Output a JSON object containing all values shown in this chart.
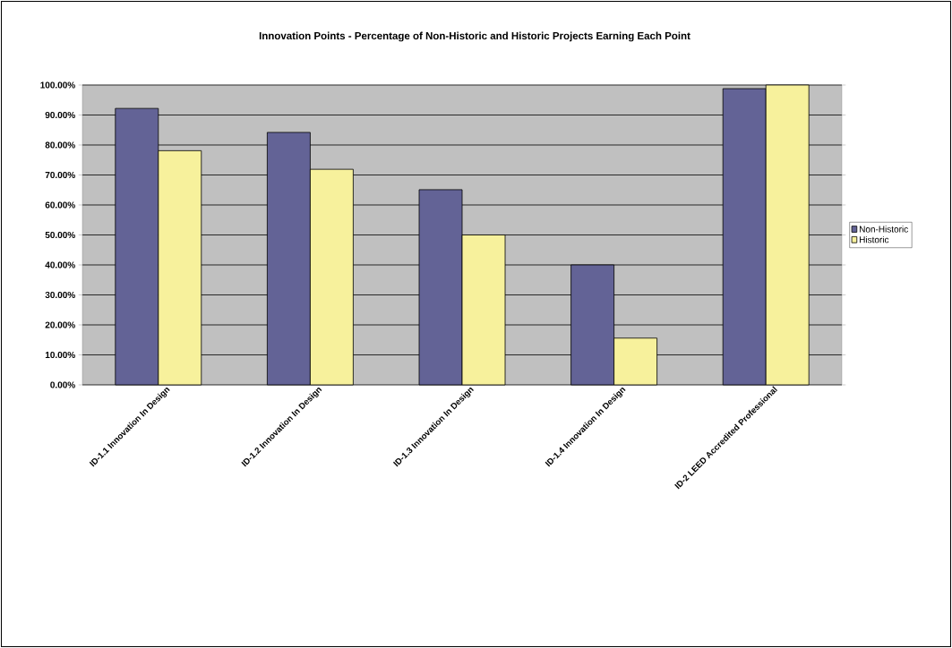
{
  "chart_data": {
    "type": "bar",
    "title": "Innovation Points - Percentage of Non-Historic and Historic Projects Earning Each Point",
    "categories": [
      "ID-1.1 Innovation In Design",
      "ID-1.2 Innovation In Design",
      "ID-1.3 Innovation In Design",
      "ID-1.4 Innovation In Design",
      "ID-2 LEED Accredited Professional"
    ],
    "series": [
      {
        "name": "Non-Historic",
        "color": "#636396",
        "values": [
          92.2,
          84.2,
          65.1,
          40.0,
          98.8
        ]
      },
      {
        "name": "Historic",
        "color": "#f7f19c",
        "values": [
          78.1,
          71.9,
          50.0,
          15.6,
          100.0
        ]
      }
    ],
    "ylim": [
      0,
      100
    ],
    "yticks": [
      {
        "value": 0,
        "label": "0.00%"
      },
      {
        "value": 10,
        "label": "10.00%"
      },
      {
        "value": 20,
        "label": "20.00%"
      },
      {
        "value": 30,
        "label": "30.00%"
      },
      {
        "value": 40,
        "label": "40.00%"
      },
      {
        "value": 50,
        "label": "50.00%"
      },
      {
        "value": 60,
        "label": "60.00%"
      },
      {
        "value": 70,
        "label": "70.00%"
      },
      {
        "value": 80,
        "label": "80.00%"
      },
      {
        "value": 90,
        "label": "90.00%"
      },
      {
        "value": 100,
        "label": "100.00%"
      }
    ],
    "grid": "y",
    "legend": "right"
  }
}
